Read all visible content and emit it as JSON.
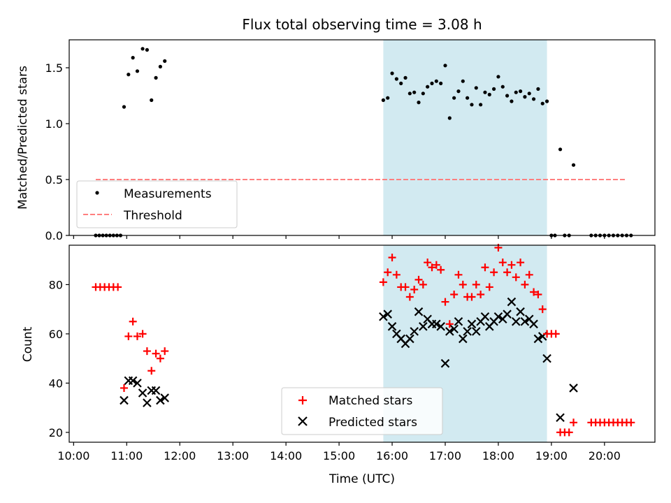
{
  "chart_data": [
    {
      "type": "scatter",
      "title": "Flux total observing time = 3.08 h",
      "ylabel": "Matched/Predicted stars",
      "xlabel": "",
      "xlim": [
        "09:55",
        "20:57"
      ],
      "ylim": [
        0,
        1.75
      ],
      "yticks": [
        0.0,
        0.5,
        1.0,
        1.5
      ],
      "shaded_interval": [
        "15:50",
        "18:55"
      ],
      "shade_color": "#add8e6",
      "threshold": {
        "name": "Threshold",
        "value": 0.5,
        "x_range": [
          "10:25",
          "20:25"
        ],
        "color": "#ff7f7f"
      },
      "legend": {
        "position": "lower-left",
        "entries": [
          "Measurements",
          "Threshold"
        ]
      },
      "series": [
        {
          "name": "Measurements",
          "color": "#000000",
          "points": [
            [
              "10:25",
              0
            ],
            [
              "10:29",
              0
            ],
            [
              "10:33",
              0
            ],
            [
              "10:37",
              0
            ],
            [
              "10:41",
              0
            ],
            [
              "10:45",
              0
            ],
            [
              "10:49",
              0
            ],
            [
              "10:53",
              0
            ],
            [
              "10:57",
              1.15
            ],
            [
              "11:02",
              1.44
            ],
            [
              "11:07",
              1.59
            ],
            [
              "11:12",
              1.47
            ],
            [
              "11:18",
              1.67
            ],
            [
              "11:23",
              1.66
            ],
            [
              "11:28",
              1.21
            ],
            [
              "11:33",
              1.41
            ],
            [
              "11:38",
              1.51
            ],
            [
              "11:43",
              1.56
            ],
            [
              "15:50",
              1.21
            ],
            [
              "15:55",
              1.23
            ],
            [
              "16:00",
              1.45
            ],
            [
              "16:05",
              1.4
            ],
            [
              "16:10",
              1.36
            ],
            [
              "16:15",
              1.41
            ],
            [
              "16:20",
              1.27
            ],
            [
              "16:25",
              1.28
            ],
            [
              "16:30",
              1.19
            ],
            [
              "16:35",
              1.27
            ],
            [
              "16:40",
              1.33
            ],
            [
              "16:45",
              1.36
            ],
            [
              "16:50",
              1.38
            ],
            [
              "16:55",
              1.36
            ],
            [
              "17:00",
              1.52
            ],
            [
              "17:05",
              1.05
            ],
            [
              "17:10",
              1.23
            ],
            [
              "17:15",
              1.29
            ],
            [
              "17:20",
              1.38
            ],
            [
              "17:25",
              1.23
            ],
            [
              "17:30",
              1.17
            ],
            [
              "17:35",
              1.32
            ],
            [
              "17:40",
              1.17
            ],
            [
              "17:45",
              1.28
            ],
            [
              "17:50",
              1.26
            ],
            [
              "17:55",
              1.31
            ],
            [
              "18:00",
              1.42
            ],
            [
              "18:05",
              1.33
            ],
            [
              "18:10",
              1.25
            ],
            [
              "18:15",
              1.2
            ],
            [
              "18:20",
              1.28
            ],
            [
              "18:25",
              1.29
            ],
            [
              "18:30",
              1.24
            ],
            [
              "18:35",
              1.27
            ],
            [
              "18:40",
              1.22
            ],
            [
              "18:45",
              1.31
            ],
            [
              "18:50",
              1.18
            ],
            [
              "18:55",
              1.2
            ],
            [
              "19:00",
              0
            ],
            [
              "19:04",
              0
            ],
            [
              "19:10",
              0.77
            ],
            [
              "19:15",
              0
            ],
            [
              "19:20",
              0
            ],
            [
              "19:25",
              0.63
            ],
            [
              "19:45",
              0
            ],
            [
              "19:50",
              0
            ],
            [
              "19:55",
              0
            ],
            [
              "20:00",
              0
            ],
            [
              "20:05",
              0
            ],
            [
              "20:10",
              0
            ],
            [
              "20:15",
              0
            ],
            [
              "20:20",
              0
            ],
            [
              "20:25",
              0
            ],
            [
              "20:30",
              0
            ]
          ]
        }
      ]
    },
    {
      "type": "scatter",
      "title": "",
      "ylabel": "Count",
      "xlabel": "Time (UTC)",
      "xlim": [
        "09:55",
        "20:57"
      ],
      "ylim": [
        16,
        96
      ],
      "yticks": [
        20,
        40,
        60,
        80
      ],
      "xticks": [
        "10:00",
        "11:00",
        "12:00",
        "13:00",
        "14:00",
        "15:00",
        "16:00",
        "17:00",
        "18:00",
        "19:00",
        "20:00"
      ],
      "shaded_interval": [
        "15:50",
        "18:55"
      ],
      "shade_color": "#add8e6",
      "legend": {
        "position": "bottom-center",
        "entries": [
          "Matched stars",
          "Predicted stars"
        ]
      },
      "series": [
        {
          "name": "Matched stars",
          "marker": "+",
          "color": "#ff0000",
          "points": [
            [
              "10:25",
              79
            ],
            [
              "10:30",
              79
            ],
            [
              "10:35",
              79
            ],
            [
              "10:40",
              79
            ],
            [
              "10:45",
              79
            ],
            [
              "10:50",
              79
            ],
            [
              "10:57",
              38
            ],
            [
              "11:02",
              59
            ],
            [
              "11:07",
              65
            ],
            [
              "11:12",
              59
            ],
            [
              "11:18",
              60
            ],
            [
              "11:23",
              53
            ],
            [
              "11:28",
              45
            ],
            [
              "11:33",
              52
            ],
            [
              "11:38",
              50
            ],
            [
              "11:43",
              53
            ],
            [
              "15:50",
              81
            ],
            [
              "15:55",
              85
            ],
            [
              "16:00",
              91
            ],
            [
              "16:05",
              84
            ],
            [
              "16:10",
              79
            ],
            [
              "16:15",
              79
            ],
            [
              "16:20",
              75
            ],
            [
              "16:25",
              78
            ],
            [
              "16:30",
              82
            ],
            [
              "16:35",
              80
            ],
            [
              "16:40",
              89
            ],
            [
              "16:45",
              87
            ],
            [
              "16:50",
              88
            ],
            [
              "16:55",
              86
            ],
            [
              "17:00",
              73
            ],
            [
              "17:05",
              64
            ],
            [
              "17:10",
              76
            ],
            [
              "17:15",
              84
            ],
            [
              "17:20",
              80
            ],
            [
              "17:25",
              75
            ],
            [
              "17:30",
              75
            ],
            [
              "17:35",
              80
            ],
            [
              "17:40",
              76
            ],
            [
              "17:45",
              87
            ],
            [
              "17:50",
              79
            ],
            [
              "17:55",
              85
            ],
            [
              "18:00",
              95
            ],
            [
              "18:05",
              89
            ],
            [
              "18:10",
              85
            ],
            [
              "18:15",
              88
            ],
            [
              "18:20",
              83
            ],
            [
              "18:25",
              89
            ],
            [
              "18:30",
              80
            ],
            [
              "18:35",
              84
            ],
            [
              "18:40",
              77
            ],
            [
              "18:45",
              76
            ],
            [
              "18:50",
              70
            ],
            [
              "18:55",
              60
            ],
            [
              "19:00",
              60
            ],
            [
              "19:05",
              60
            ],
            [
              "19:10",
              20
            ],
            [
              "19:15",
              20
            ],
            [
              "19:20",
              20
            ],
            [
              "19:25",
              24
            ],
            [
              "19:45",
              24
            ],
            [
              "19:50",
              24
            ],
            [
              "19:55",
              24
            ],
            [
              "20:00",
              24
            ],
            [
              "20:05",
              24
            ],
            [
              "20:10",
              24
            ],
            [
              "20:15",
              24
            ],
            [
              "20:20",
              24
            ],
            [
              "20:25",
              24
            ],
            [
              "20:30",
              24
            ]
          ]
        },
        {
          "name": "Predicted stars",
          "marker": "x",
          "color": "#000000",
          "points": [
            [
              "10:57",
              33
            ],
            [
              "11:02",
              41
            ],
            [
              "11:07",
              41
            ],
            [
              "11:12",
              40
            ],
            [
              "11:18",
              36
            ],
            [
              "11:23",
              32
            ],
            [
              "11:28",
              37
            ],
            [
              "11:33",
              37
            ],
            [
              "11:38",
              33
            ],
            [
              "11:43",
              34
            ],
            [
              "15:50",
              67
            ],
            [
              "15:55",
              68
            ],
            [
              "16:00",
              63
            ],
            [
              "16:05",
              60
            ],
            [
              "16:10",
              58
            ],
            [
              "16:15",
              56
            ],
            [
              "16:20",
              58
            ],
            [
              "16:25",
              61
            ],
            [
              "16:30",
              69
            ],
            [
              "16:35",
              63
            ],
            [
              "16:40",
              66
            ],
            [
              "16:45",
              64
            ],
            [
              "16:50",
              64
            ],
            [
              "16:55",
              63
            ],
            [
              "17:00",
              48
            ],
            [
              "17:05",
              61
            ],
            [
              "17:10",
              62
            ],
            [
              "17:15",
              65
            ],
            [
              "17:20",
              58
            ],
            [
              "17:25",
              61
            ],
            [
              "17:30",
              64
            ],
            [
              "17:35",
              61
            ],
            [
              "17:40",
              65
            ],
            [
              "17:45",
              67
            ],
            [
              "17:50",
              63
            ],
            [
              "17:55",
              65
            ],
            [
              "18:00",
              67
            ],
            [
              "18:05",
              66
            ],
            [
              "18:10",
              68
            ],
            [
              "18:15",
              73
            ],
            [
              "18:20",
              65
            ],
            [
              "18:25",
              69
            ],
            [
              "18:30",
              65
            ],
            [
              "18:35",
              66
            ],
            [
              "18:40",
              64
            ],
            [
              "18:45",
              58
            ],
            [
              "18:50",
              59
            ],
            [
              "18:55",
              50
            ],
            [
              "19:10",
              26
            ],
            [
              "19:25",
              38
            ]
          ]
        }
      ]
    }
  ]
}
